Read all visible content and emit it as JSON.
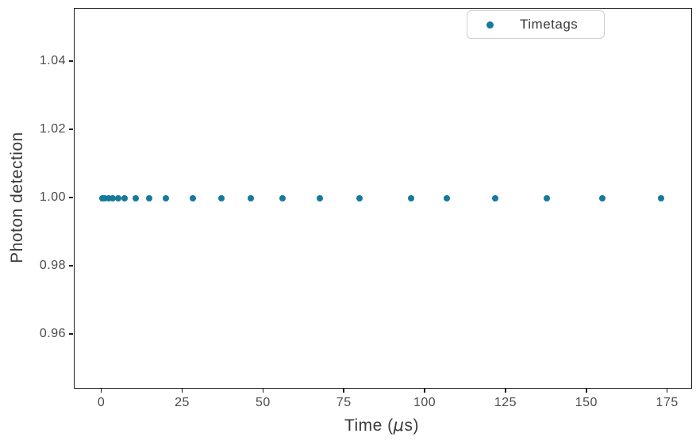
{
  "chart_data": {
    "type": "scatter",
    "title": "",
    "xlabel": "Time (μs)",
    "xlabel_parts": {
      "prefix": "Time (",
      "mu": "μ",
      "suffix": "s)"
    },
    "ylabel": "Photon detection",
    "legend": {
      "label": "Timetags",
      "position": "upper right"
    },
    "grid": false,
    "xlim": [
      -8.5,
      182.2
    ],
    "ylim": [
      0.9445,
      1.0555
    ],
    "xticks": [
      "0",
      "25",
      "50",
      "75",
      "100",
      "125",
      "150",
      "175"
    ],
    "yticks": [
      "0.96",
      "0.98",
      "1.00",
      "1.02",
      "1.04"
    ],
    "series": [
      {
        "name": "Timetags",
        "marker": "circle",
        "color": "#147a9b",
        "y_constant": 1.0,
        "x": [
          0,
          0.9,
          2.0,
          3.2,
          4.9,
          7.0,
          10.5,
          14.6,
          19.7,
          28.0,
          37.0,
          46.0,
          55.8,
          67.3,
          79.5,
          95.5,
          106.6,
          121.6,
          137.6,
          154.8,
          172.8
        ]
      }
    ],
    "colors": {
      "marker": "#147a9b",
      "spine": "#1c1c1c",
      "tick_label": "#4b4b4b",
      "axis_label": "#3a3a3a",
      "legend_border": "#cfcfcf",
      "background": "#ffffff"
    }
  }
}
